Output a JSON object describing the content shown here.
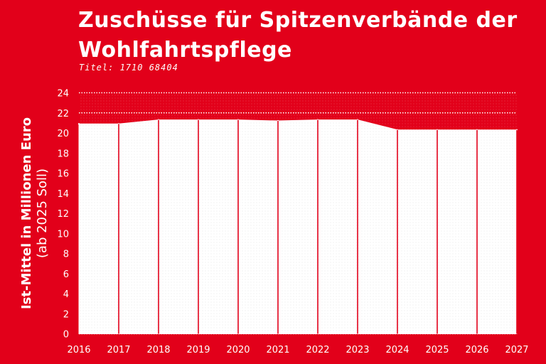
{
  "chart_data": {
    "type": "area",
    "title": "Zuschüsse für Spitzenverbände der Wohlfahrtspflege",
    "subtitle": "Titel: 1710 68404",
    "ylabel_line1": "Ist-Mittel in Millionen Euro",
    "ylabel_line2": "(ab 2025 Soll)",
    "x": [
      "2016",
      "2017",
      "2018",
      "2019",
      "2020",
      "2021",
      "2022",
      "2023",
      "2024",
      "2025",
      "2026",
      "2027"
    ],
    "series": [
      {
        "values": [
          20.9,
          20.9,
          21.3,
          21.3,
          21.3,
          21.2,
          21.3,
          21.3,
          20.3,
          20.3,
          20.3,
          20.3
        ]
      }
    ],
    "ylim": [
      0,
      24
    ],
    "yticks": [
      "0",
      "2",
      "4",
      "6",
      "8",
      "10",
      "12",
      "14",
      "16",
      "18",
      "20",
      "22",
      "24"
    ],
    "grid": true,
    "colors": {
      "background": "#e2001a",
      "fill": "#ffffff",
      "grid": "#ffffff"
    }
  }
}
